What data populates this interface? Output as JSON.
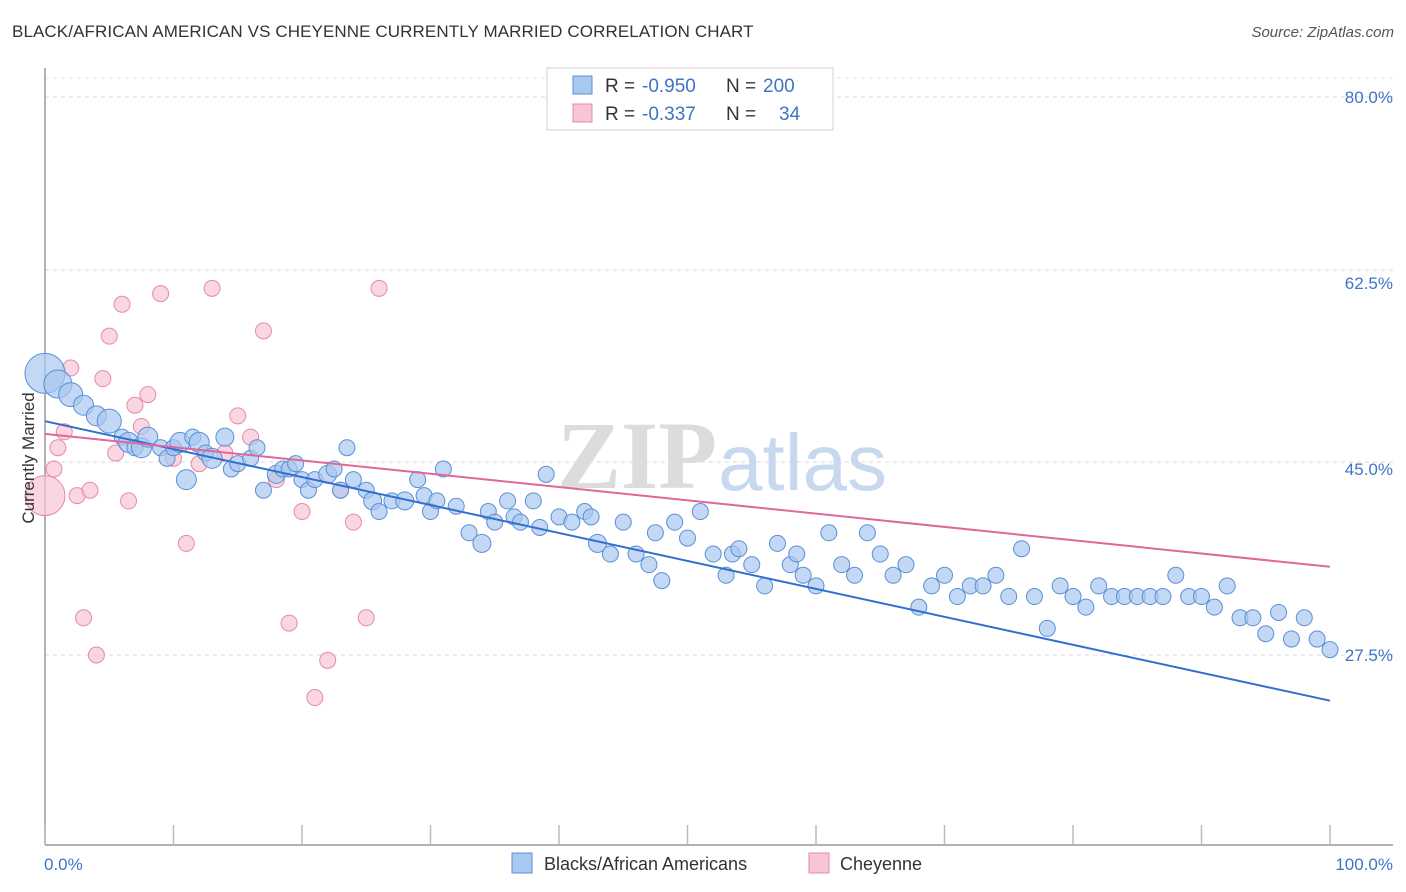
{
  "header": {
    "title": "BLACK/AFRICAN AMERICAN VS CHEYENNE CURRENTLY MARRIED CORRELATION CHART",
    "source": "Source: ZipAtlas.com"
  },
  "legend": {
    "rows": [
      {
        "r_label": "R =",
        "r_value": "-0.950",
        "n_label": "N =",
        "n_value": "200"
      },
      {
        "r_label": "R =",
        "r_value": "-0.337",
        "n_label": "N =",
        "n_value": "34"
      }
    ]
  },
  "bottom_legend": {
    "items": [
      "Blacks/African Americans",
      "Cheyenne"
    ]
  },
  "watermark": {
    "zip": "ZIP",
    "atlas": "atlas"
  },
  "colors": {
    "blue_fill": "#a9c8f0",
    "blue_stroke": "#5b8fd6",
    "blue_line": "#2f6fd0",
    "pink_fill": "#f8c5d5",
    "pink_stroke": "#e58aa8",
    "pink_line": "#e0679a",
    "tick_text": "#3f74c4",
    "grid": "#d8d8d8"
  },
  "chart_data": {
    "type": "scatter",
    "title": "BLACK/AFRICAN AMERICAN VS CHEYENNE CURRENTLY MARRIED CORRELATION CHART",
    "xlabel": "",
    "ylabel": "Currently Married",
    "xlim": [
      0,
      100
    ],
    "ylim": [
      10,
      82
    ],
    "x_tick_labels": [
      "0.0%",
      "100.0%"
    ],
    "y_ticks": [
      27.5,
      45.0,
      62.5,
      80.0
    ],
    "y_tick_labels": [
      "27.5%",
      "45.0%",
      "62.5%",
      "80.0%"
    ],
    "grid": true,
    "legend_position": "top-center",
    "series": [
      {
        "name": "Blacks/African Americans",
        "color": "#a9c8f0",
        "R": -0.95,
        "N": 200,
        "trend": {
          "x": [
            0,
            100
          ],
          "y": [
            49.5,
            23.2
          ]
        },
        "points": [
          [
            0,
            54,
            20
          ],
          [
            1,
            53,
            14
          ],
          [
            2,
            52,
            12
          ],
          [
            3,
            51,
            10
          ],
          [
            4,
            50,
            10
          ],
          [
            5,
            49.5,
            12
          ],
          [
            6,
            48,
            8
          ],
          [
            6.5,
            47.5,
            10
          ],
          [
            7,
            47,
            8
          ],
          [
            7.5,
            47,
            10
          ],
          [
            8,
            48,
            10
          ],
          [
            9,
            47,
            8
          ],
          [
            9.5,
            46,
            8
          ],
          [
            10,
            47,
            8
          ],
          [
            10.5,
            47.5,
            10
          ],
          [
            11,
            44,
            10
          ],
          [
            11.5,
            48,
            8
          ],
          [
            12,
            47.5,
            10
          ],
          [
            12.5,
            46.5,
            8
          ],
          [
            13,
            46,
            10
          ],
          [
            14,
            48,
            9
          ],
          [
            14.5,
            45,
            8
          ],
          [
            15,
            45.5,
            8
          ],
          [
            16,
            46,
            8
          ],
          [
            16.5,
            47,
            8
          ],
          [
            17,
            43,
            8
          ],
          [
            18,
            44.5,
            9
          ],
          [
            18.5,
            45,
            8
          ],
          [
            19,
            45,
            8
          ],
          [
            19.5,
            45.5,
            8
          ],
          [
            20,
            44,
            8
          ],
          [
            20.5,
            43,
            8
          ],
          [
            21,
            44,
            8
          ],
          [
            22,
            44.5,
            9
          ],
          [
            22.5,
            45,
            8
          ],
          [
            23,
            43,
            8
          ],
          [
            23.5,
            47,
            8
          ],
          [
            24,
            44,
            8
          ],
          [
            25,
            43,
            8
          ],
          [
            25.5,
            42,
            9
          ],
          [
            26,
            41,
            8
          ],
          [
            27,
            42,
            8
          ],
          [
            28,
            42,
            9
          ],
          [
            29,
            44,
            8
          ],
          [
            29.5,
            42.5,
            8
          ],
          [
            30,
            41,
            8
          ],
          [
            30.5,
            42,
            8
          ],
          [
            31,
            45,
            8
          ],
          [
            32,
            41.5,
            8
          ],
          [
            33,
            39,
            8
          ],
          [
            34,
            38,
            9
          ],
          [
            34.5,
            41,
            8
          ],
          [
            35,
            40,
            8
          ],
          [
            36,
            42,
            8
          ],
          [
            36.5,
            40.5,
            8
          ],
          [
            37,
            40,
            8
          ],
          [
            38,
            42,
            8
          ],
          [
            38.5,
            39.5,
            8
          ],
          [
            39,
            44.5,
            8
          ],
          [
            40,
            40.5,
            8
          ],
          [
            41,
            40,
            8
          ],
          [
            42,
            41,
            8
          ],
          [
            42.5,
            40.5,
            8
          ],
          [
            43,
            38,
            9
          ],
          [
            44,
            37,
            8
          ],
          [
            45,
            40,
            8
          ],
          [
            46,
            37,
            8
          ],
          [
            47,
            36,
            8
          ],
          [
            47.5,
            39,
            8
          ],
          [
            48,
            34.5,
            8
          ],
          [
            49,
            40,
            8
          ],
          [
            50,
            38.5,
            8
          ],
          [
            51,
            41,
            8
          ],
          [
            52,
            37,
            8
          ],
          [
            53,
            35,
            8
          ],
          [
            53.5,
            37,
            8
          ],
          [
            54,
            37.5,
            8
          ],
          [
            55,
            36,
            8
          ],
          [
            56,
            34,
            8
          ],
          [
            57,
            38,
            8
          ],
          [
            58,
            36,
            8
          ],
          [
            58.5,
            37,
            8
          ],
          [
            59,
            35,
            8
          ],
          [
            60,
            34,
            8
          ],
          [
            61,
            39,
            8
          ],
          [
            62,
            36,
            8
          ],
          [
            63,
            35,
            8
          ],
          [
            64,
            39,
            8
          ],
          [
            65,
            37,
            8
          ],
          [
            66,
            35,
            8
          ],
          [
            67,
            36,
            8
          ],
          [
            68,
            32,
            8
          ],
          [
            69,
            34,
            8
          ],
          [
            70,
            35,
            8
          ],
          [
            71,
            33,
            8
          ],
          [
            72,
            34,
            8
          ],
          [
            73,
            34,
            8
          ],
          [
            74,
            35,
            8
          ],
          [
            75,
            33,
            8
          ],
          [
            76,
            37.5,
            8
          ],
          [
            77,
            33,
            8
          ],
          [
            78,
            30,
            8
          ],
          [
            79,
            34,
            8
          ],
          [
            80,
            33,
            8
          ],
          [
            81,
            32,
            8
          ],
          [
            82,
            34,
            8
          ],
          [
            83,
            33,
            8
          ],
          [
            84,
            33,
            8
          ],
          [
            85,
            33,
            8
          ],
          [
            86,
            33,
            8
          ],
          [
            87,
            33,
            8
          ],
          [
            88,
            35,
            8
          ],
          [
            89,
            33,
            8
          ],
          [
            90,
            33,
            8
          ],
          [
            91,
            32,
            8
          ],
          [
            92,
            34,
            8
          ],
          [
            93,
            31,
            8
          ],
          [
            94,
            31,
            8
          ],
          [
            95,
            29.5,
            8
          ],
          [
            96,
            31.5,
            8
          ],
          [
            97,
            29,
            8
          ],
          [
            98,
            31,
            8
          ],
          [
            99,
            29,
            8
          ],
          [
            100,
            28,
            8
          ]
        ]
      },
      {
        "name": "Cheyenne",
        "color": "#f8c5d5",
        "R": -0.337,
        "N": 34,
        "trend": {
          "x": [
            0,
            100
          ],
          "y": [
            48.3,
            35.8
          ]
        },
        "points": [
          [
            0,
            42.5,
            20
          ],
          [
            0.7,
            45,
            8
          ],
          [
            1,
            47,
            8
          ],
          [
            1.5,
            48.5,
            8
          ],
          [
            2,
            54.5,
            8
          ],
          [
            2.5,
            42.5,
            8
          ],
          [
            3,
            31,
            8
          ],
          [
            3.5,
            43,
            8
          ],
          [
            4,
            27.5,
            8
          ],
          [
            4.5,
            53.5,
            8
          ],
          [
            5,
            57.5,
            8
          ],
          [
            5.5,
            46.5,
            8
          ],
          [
            6,
            60.5,
            8
          ],
          [
            6.5,
            42,
            8
          ],
          [
            7,
            51,
            8
          ],
          [
            7.5,
            49,
            8
          ],
          [
            8,
            52,
            8
          ],
          [
            9,
            61.5,
            8
          ],
          [
            10,
            46,
            8
          ],
          [
            11,
            38,
            8
          ],
          [
            12,
            45.5,
            8
          ],
          [
            13,
            62,
            8
          ],
          [
            14,
            46.5,
            8
          ],
          [
            15,
            50,
            8
          ],
          [
            16,
            48,
            8
          ],
          [
            17,
            58,
            8
          ],
          [
            18,
            44,
            8
          ],
          [
            19,
            30.5,
            8
          ],
          [
            20,
            41,
            8
          ],
          [
            21,
            23.5,
            8
          ],
          [
            22,
            27,
            8
          ],
          [
            23,
            43,
            8
          ],
          [
            24,
            40,
            8
          ],
          [
            25,
            31,
            8
          ],
          [
            26,
            62,
            8
          ]
        ]
      }
    ]
  }
}
